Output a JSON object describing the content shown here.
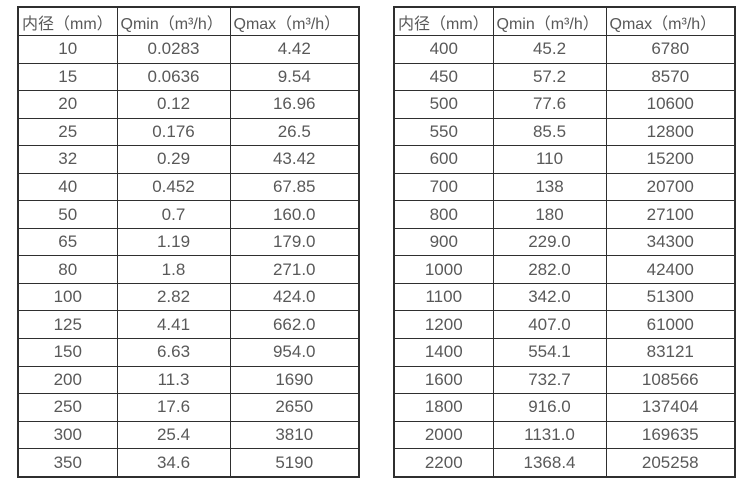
{
  "page": {
    "background_color": "#ffffff",
    "border_color": "#2f2f2f",
    "text_color": "#595959"
  },
  "tables": [
    {
      "name": "flow-spec-small-diameters",
      "headers": [
        "内径（mm）",
        "Qmin（m³/h）",
        "Qmax（m³/h）"
      ],
      "rows": [
        [
          "10",
          "0.0283",
          "4.42"
        ],
        [
          "15",
          "0.0636",
          "9.54"
        ],
        [
          "20",
          "0.12",
          "16.96"
        ],
        [
          "25",
          "0.176",
          "26.5"
        ],
        [
          "32",
          "0.29",
          "43.42"
        ],
        [
          "40",
          "0.452",
          "67.85"
        ],
        [
          "50",
          "0.7",
          "160.0"
        ],
        [
          "65",
          "1.19",
          "179.0"
        ],
        [
          "80",
          "1.8",
          "271.0"
        ],
        [
          "100",
          "2.82",
          "424.0"
        ],
        [
          "125",
          "4.41",
          "662.0"
        ],
        [
          "150",
          "6.63",
          "954.0"
        ],
        [
          "200",
          "11.3",
          "1690"
        ],
        [
          "250",
          "17.6",
          "2650"
        ],
        [
          "300",
          "25.4",
          "3810"
        ],
        [
          "350",
          "34.6",
          "5190"
        ]
      ]
    },
    {
      "name": "flow-spec-large-diameters",
      "headers": [
        "内径（mm）",
        "Qmin（m³/h）",
        "Qmax（m³/h）"
      ],
      "rows": [
        [
          "400",
          "45.2",
          "6780"
        ],
        [
          "450",
          "57.2",
          "8570"
        ],
        [
          "500",
          "77.6",
          "10600"
        ],
        [
          "550",
          "85.5",
          "12800"
        ],
        [
          "600",
          "110",
          "15200"
        ],
        [
          "700",
          "138",
          "20700"
        ],
        [
          "800",
          "180",
          "27100"
        ],
        [
          "900",
          "229.0",
          "34300"
        ],
        [
          "1000",
          "282.0",
          "42400"
        ],
        [
          "1100",
          "342.0",
          "51300"
        ],
        [
          "1200",
          "407.0",
          "61000"
        ],
        [
          "1400",
          "554.1",
          "83121"
        ],
        [
          "1600",
          "732.7",
          "108566"
        ],
        [
          "1800",
          "916.0",
          "137404"
        ],
        [
          "2000",
          "1131.0",
          "169635"
        ],
        [
          "2200",
          "1368.4",
          "205258"
        ]
      ]
    }
  ]
}
